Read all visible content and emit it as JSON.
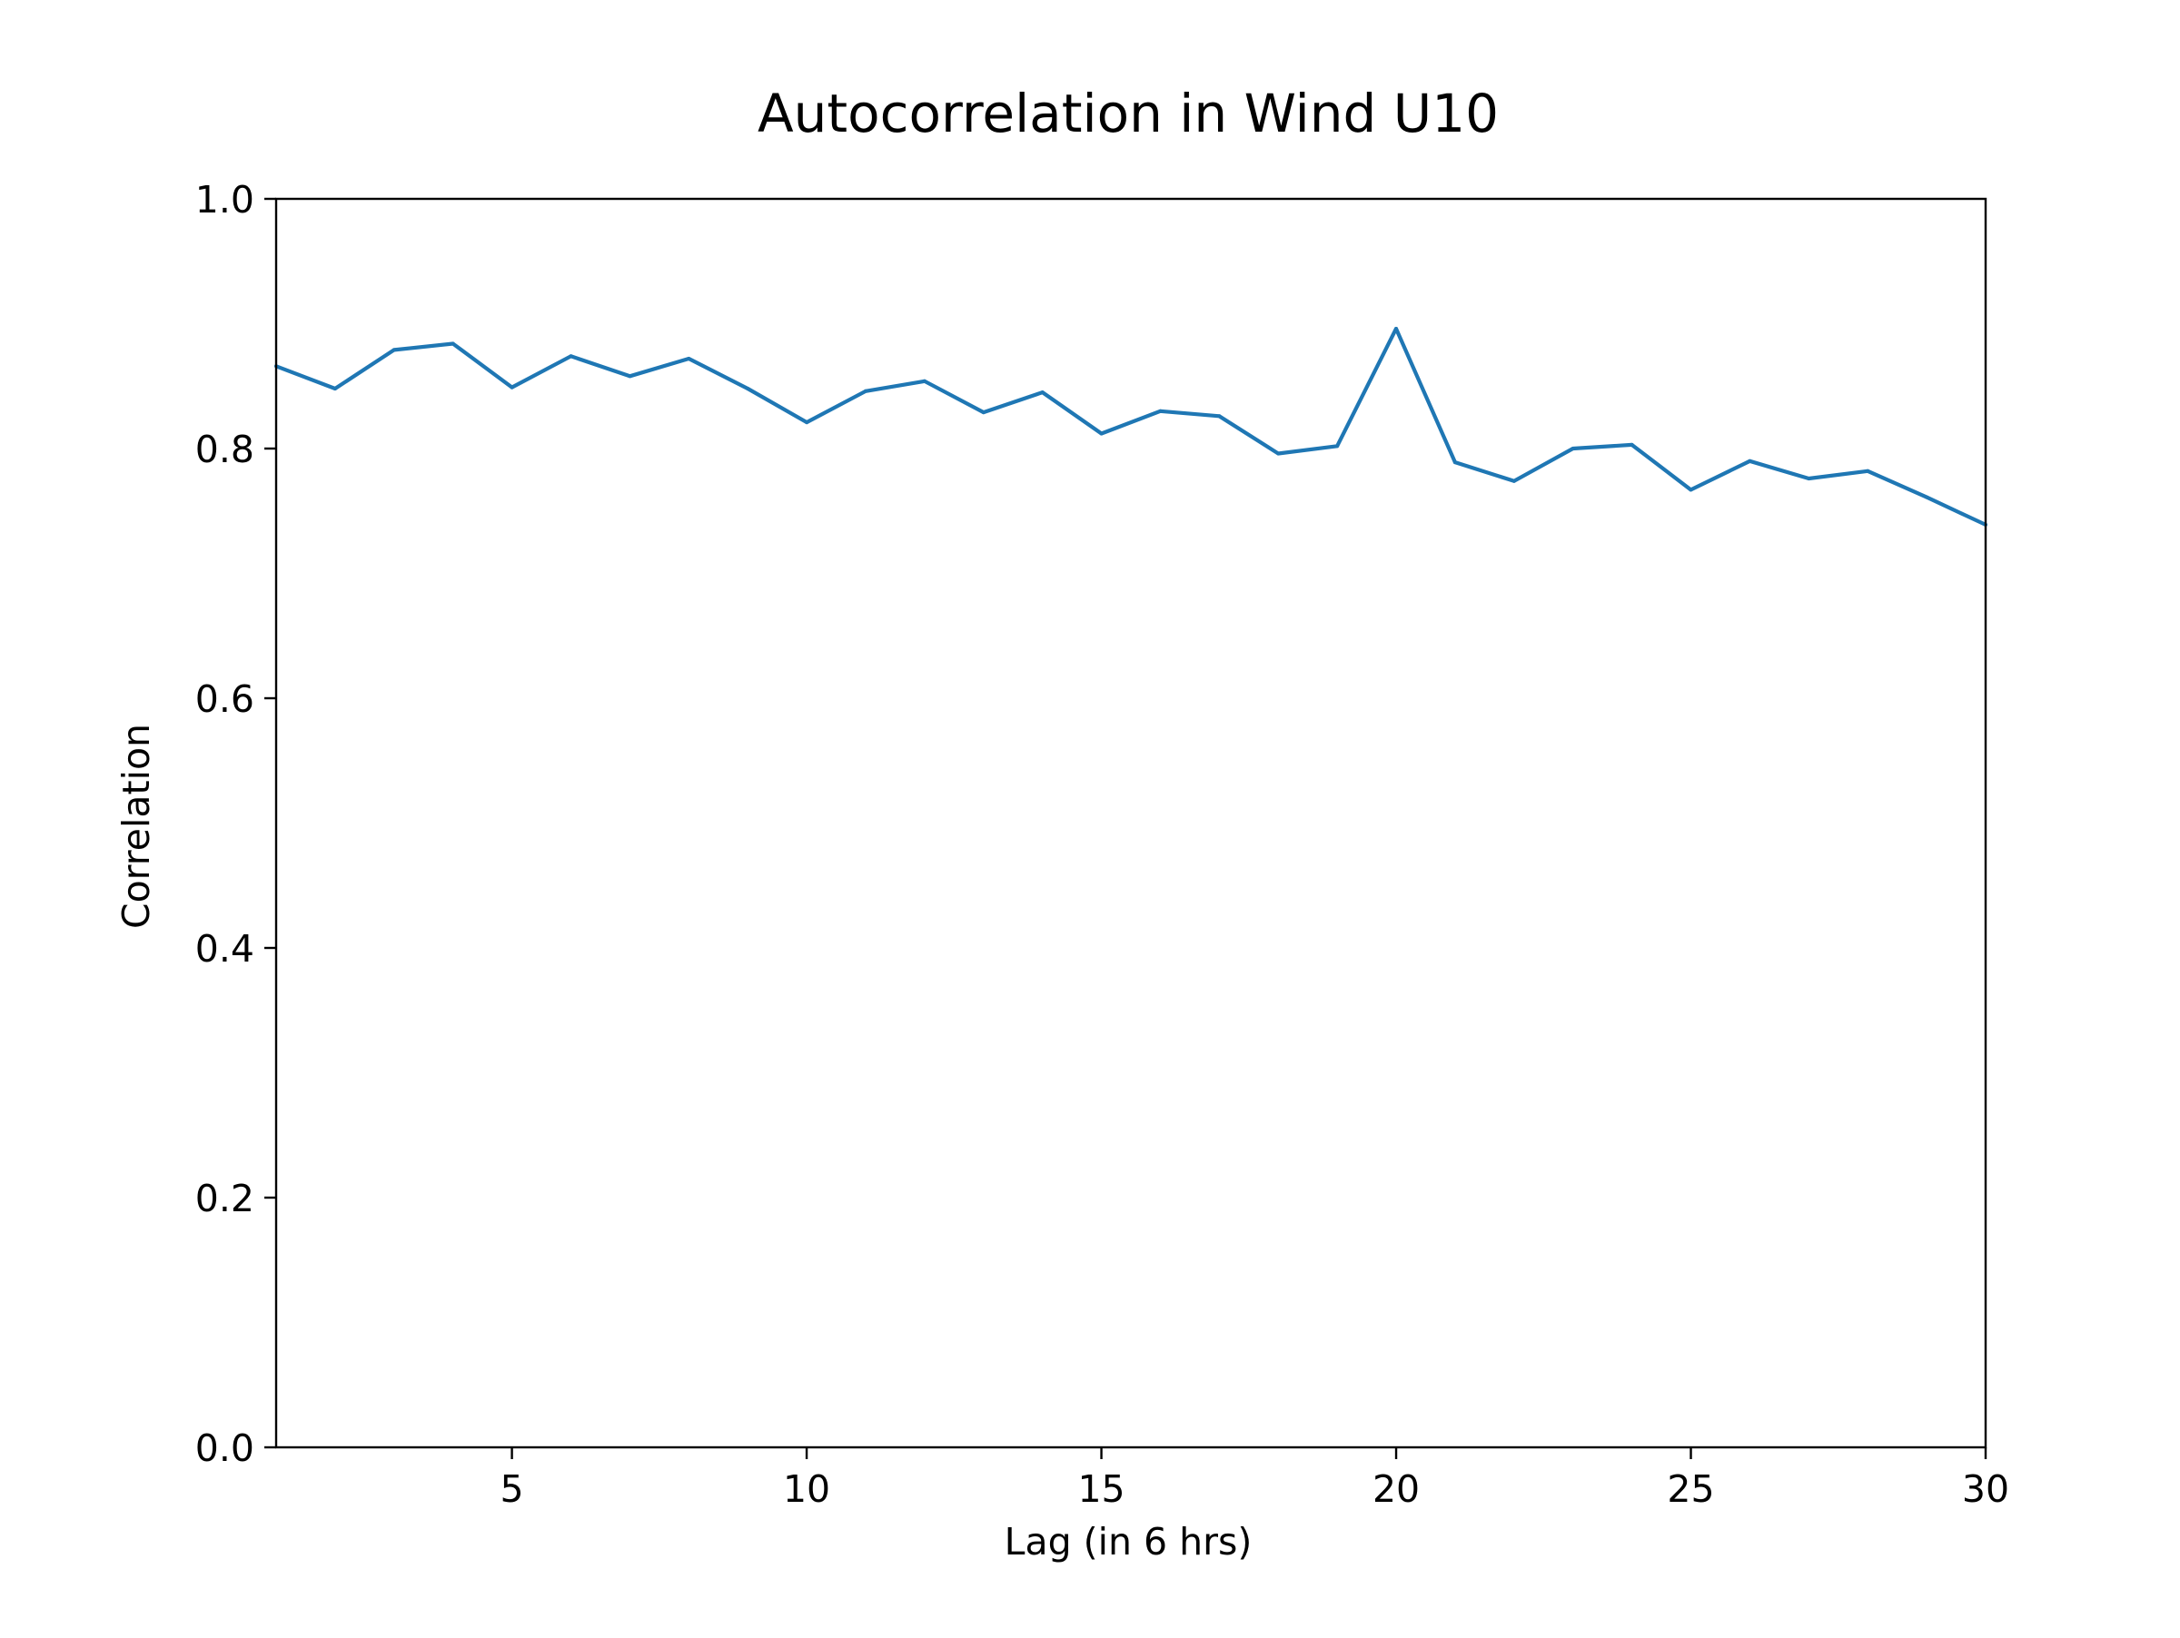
{
  "chart_data": {
    "type": "line",
    "title": "Autocorrelation in Wind U10",
    "xlabel": "Lag (in 6 hrs)",
    "ylabel": "Correlation",
    "xlim": [
      1,
      30
    ],
    "ylim": [
      0.0,
      1.0
    ],
    "xticks": [
      5,
      10,
      15,
      20,
      25,
      30
    ],
    "xtick_labels": [
      "5",
      "10",
      "15",
      "20",
      "25",
      "30"
    ],
    "yticks": [
      0.0,
      0.2,
      0.4,
      0.6,
      0.8,
      1.0
    ],
    "ytick_labels": [
      "0.0",
      "0.2",
      "0.4",
      "0.6",
      "0.8",
      "1.0"
    ],
    "grid": false,
    "colors": {
      "line": "#1f77b4",
      "axes": "#000000"
    },
    "series": [
      {
        "x": [
          1,
          2,
          3,
          4,
          5,
          6,
          7,
          8,
          9,
          10,
          11,
          12,
          13,
          14,
          15,
          16,
          17,
          18,
          19,
          20,
          21,
          22,
          23,
          24,
          25,
          26,
          27,
          28,
          29,
          30
        ],
        "values": [
          0.866,
          0.848,
          0.879,
          0.884,
          0.849,
          0.874,
          0.858,
          0.872,
          0.848,
          0.821,
          0.846,
          0.854,
          0.829,
          0.845,
          0.812,
          0.83,
          0.826,
          0.796,
          0.802,
          0.896,
          0.789,
          0.774,
          0.8,
          0.803,
          0.767,
          0.79,
          0.776,
          0.782,
          0.761,
          0.739
        ]
      }
    ]
  }
}
